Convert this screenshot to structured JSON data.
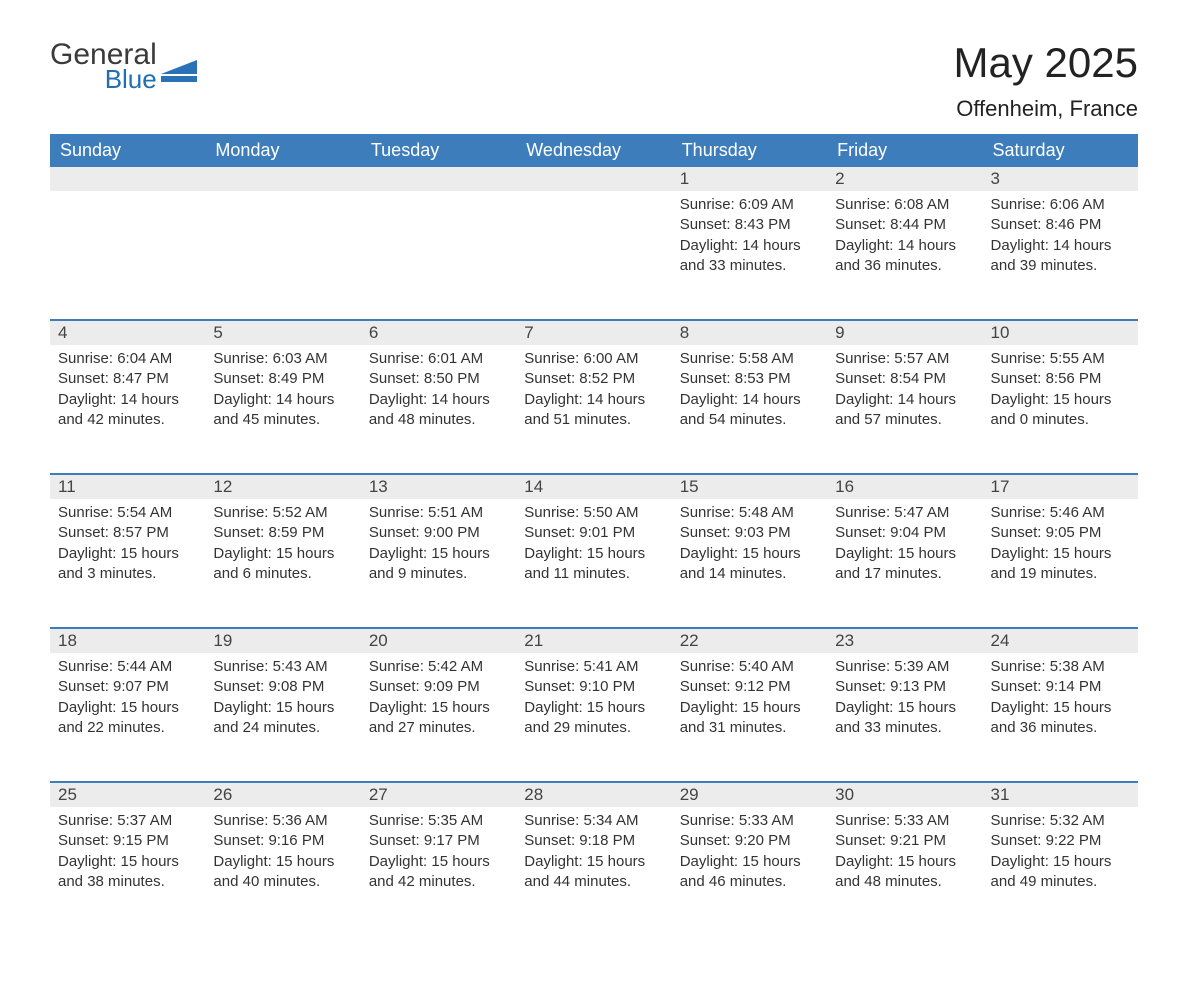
{
  "logo": {
    "general": "General",
    "blue": "Blue"
  },
  "title": "May 2025",
  "location": "Offenheim, France",
  "colors": {
    "header_bg": "#3d7dbb",
    "header_text": "#ffffff",
    "daynum_bg": "#ececec",
    "daynum_border": "#3d7dbb",
    "text": "#333333",
    "logo_blue": "#1f6fb2",
    "background": "#ffffff"
  },
  "typography": {
    "title_fontsize": 42,
    "location_fontsize": 22,
    "dayheader_fontsize": 18,
    "daynum_fontsize": 17,
    "body_fontsize": 15
  },
  "days_of_week": [
    "Sunday",
    "Monday",
    "Tuesday",
    "Wednesday",
    "Thursday",
    "Friday",
    "Saturday"
  ],
  "weeks": [
    [
      null,
      null,
      null,
      null,
      {
        "n": "1",
        "sunrise": "Sunrise: 6:09 AM",
        "sunset": "Sunset: 8:43 PM",
        "daylight": "Daylight: 14 hours and 33 minutes."
      },
      {
        "n": "2",
        "sunrise": "Sunrise: 6:08 AM",
        "sunset": "Sunset: 8:44 PM",
        "daylight": "Daylight: 14 hours and 36 minutes."
      },
      {
        "n": "3",
        "sunrise": "Sunrise: 6:06 AM",
        "sunset": "Sunset: 8:46 PM",
        "daylight": "Daylight: 14 hours and 39 minutes."
      }
    ],
    [
      {
        "n": "4",
        "sunrise": "Sunrise: 6:04 AM",
        "sunset": "Sunset: 8:47 PM",
        "daylight": "Daylight: 14 hours and 42 minutes."
      },
      {
        "n": "5",
        "sunrise": "Sunrise: 6:03 AM",
        "sunset": "Sunset: 8:49 PM",
        "daylight": "Daylight: 14 hours and 45 minutes."
      },
      {
        "n": "6",
        "sunrise": "Sunrise: 6:01 AM",
        "sunset": "Sunset: 8:50 PM",
        "daylight": "Daylight: 14 hours and 48 minutes."
      },
      {
        "n": "7",
        "sunrise": "Sunrise: 6:00 AM",
        "sunset": "Sunset: 8:52 PM",
        "daylight": "Daylight: 14 hours and 51 minutes."
      },
      {
        "n": "8",
        "sunrise": "Sunrise: 5:58 AM",
        "sunset": "Sunset: 8:53 PM",
        "daylight": "Daylight: 14 hours and 54 minutes."
      },
      {
        "n": "9",
        "sunrise": "Sunrise: 5:57 AM",
        "sunset": "Sunset: 8:54 PM",
        "daylight": "Daylight: 14 hours and 57 minutes."
      },
      {
        "n": "10",
        "sunrise": "Sunrise: 5:55 AM",
        "sunset": "Sunset: 8:56 PM",
        "daylight": "Daylight: 15 hours and 0 minutes."
      }
    ],
    [
      {
        "n": "11",
        "sunrise": "Sunrise: 5:54 AM",
        "sunset": "Sunset: 8:57 PM",
        "daylight": "Daylight: 15 hours and 3 minutes."
      },
      {
        "n": "12",
        "sunrise": "Sunrise: 5:52 AM",
        "sunset": "Sunset: 8:59 PM",
        "daylight": "Daylight: 15 hours and 6 minutes."
      },
      {
        "n": "13",
        "sunrise": "Sunrise: 5:51 AM",
        "sunset": "Sunset: 9:00 PM",
        "daylight": "Daylight: 15 hours and 9 minutes."
      },
      {
        "n": "14",
        "sunrise": "Sunrise: 5:50 AM",
        "sunset": "Sunset: 9:01 PM",
        "daylight": "Daylight: 15 hours and 11 minutes."
      },
      {
        "n": "15",
        "sunrise": "Sunrise: 5:48 AM",
        "sunset": "Sunset: 9:03 PM",
        "daylight": "Daylight: 15 hours and 14 minutes."
      },
      {
        "n": "16",
        "sunrise": "Sunrise: 5:47 AM",
        "sunset": "Sunset: 9:04 PM",
        "daylight": "Daylight: 15 hours and 17 minutes."
      },
      {
        "n": "17",
        "sunrise": "Sunrise: 5:46 AM",
        "sunset": "Sunset: 9:05 PM",
        "daylight": "Daylight: 15 hours and 19 minutes."
      }
    ],
    [
      {
        "n": "18",
        "sunrise": "Sunrise: 5:44 AM",
        "sunset": "Sunset: 9:07 PM",
        "daylight": "Daylight: 15 hours and 22 minutes."
      },
      {
        "n": "19",
        "sunrise": "Sunrise: 5:43 AM",
        "sunset": "Sunset: 9:08 PM",
        "daylight": "Daylight: 15 hours and 24 minutes."
      },
      {
        "n": "20",
        "sunrise": "Sunrise: 5:42 AM",
        "sunset": "Sunset: 9:09 PM",
        "daylight": "Daylight: 15 hours and 27 minutes."
      },
      {
        "n": "21",
        "sunrise": "Sunrise: 5:41 AM",
        "sunset": "Sunset: 9:10 PM",
        "daylight": "Daylight: 15 hours and 29 minutes."
      },
      {
        "n": "22",
        "sunrise": "Sunrise: 5:40 AM",
        "sunset": "Sunset: 9:12 PM",
        "daylight": "Daylight: 15 hours and 31 minutes."
      },
      {
        "n": "23",
        "sunrise": "Sunrise: 5:39 AM",
        "sunset": "Sunset: 9:13 PM",
        "daylight": "Daylight: 15 hours and 33 minutes."
      },
      {
        "n": "24",
        "sunrise": "Sunrise: 5:38 AM",
        "sunset": "Sunset: 9:14 PM",
        "daylight": "Daylight: 15 hours and 36 minutes."
      }
    ],
    [
      {
        "n": "25",
        "sunrise": "Sunrise: 5:37 AM",
        "sunset": "Sunset: 9:15 PM",
        "daylight": "Daylight: 15 hours and 38 minutes."
      },
      {
        "n": "26",
        "sunrise": "Sunrise: 5:36 AM",
        "sunset": "Sunset: 9:16 PM",
        "daylight": "Daylight: 15 hours and 40 minutes."
      },
      {
        "n": "27",
        "sunrise": "Sunrise: 5:35 AM",
        "sunset": "Sunset: 9:17 PM",
        "daylight": "Daylight: 15 hours and 42 minutes."
      },
      {
        "n": "28",
        "sunrise": "Sunrise: 5:34 AM",
        "sunset": "Sunset: 9:18 PM",
        "daylight": "Daylight: 15 hours and 44 minutes."
      },
      {
        "n": "29",
        "sunrise": "Sunrise: 5:33 AM",
        "sunset": "Sunset: 9:20 PM",
        "daylight": "Daylight: 15 hours and 46 minutes."
      },
      {
        "n": "30",
        "sunrise": "Sunrise: 5:33 AM",
        "sunset": "Sunset: 9:21 PM",
        "daylight": "Daylight: 15 hours and 48 minutes."
      },
      {
        "n": "31",
        "sunrise": "Sunrise: 5:32 AM",
        "sunset": "Sunset: 9:22 PM",
        "daylight": "Daylight: 15 hours and 49 minutes."
      }
    ]
  ]
}
